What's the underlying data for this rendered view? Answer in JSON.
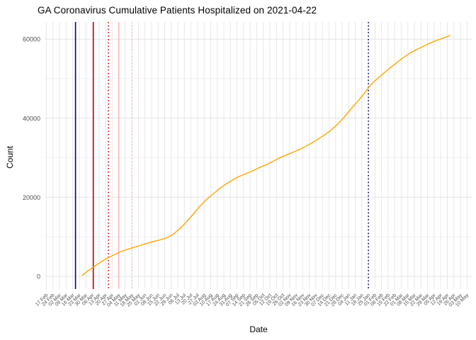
{
  "figure": {
    "title": "GA Coronavirus Cumulative Patients Hospitalized on 2021-04-22",
    "xlabel": "Date",
    "ylabel": "Count"
  },
  "chart_data": {
    "type": "line",
    "title": "GA Coronavirus Cumulative Patients Hospitalized on 2021-04-22",
    "xlabel": "Date",
    "ylabel": "Count",
    "grid": true,
    "legend": "none",
    "x_axis": {
      "start_date": "2020-02-17",
      "end_date": "2021-05-10",
      "tick_interval": "1 week",
      "tick_labels": [
        "17 Feb",
        "24 Feb",
        "02 Mar",
        "09 Mar",
        "16 Mar",
        "23 Mar",
        "30 Mar",
        "06 Apr",
        "13 Apr",
        "20 Apr",
        "27 Apr",
        "04 May",
        "11 May",
        "18 May",
        "25 May",
        "01 Jun",
        "08 Jun",
        "15 Jun",
        "22 Jun",
        "29 Jun",
        "06 Jul",
        "13 Jul",
        "20 Jul",
        "27 Jul",
        "03 Aug",
        "10 Aug",
        "17 Aug",
        "24 Aug",
        "31 Aug",
        "07 Sep",
        "14 Sep",
        "21 Sep",
        "28 Sep",
        "05 Oct",
        "12 Oct",
        "19 Oct",
        "26 Oct",
        "02 Nov",
        "09 Nov",
        "16 Nov",
        "23 Nov",
        "30 Nov",
        "07 Dec",
        "14 Dec",
        "21 Dec",
        "28 Dec",
        "04 Jan",
        "11 Jan",
        "18 Jan",
        "25 Jan",
        "01 Feb",
        "08 Feb",
        "15 Feb",
        "22 Feb",
        "01 Mar",
        "08 Mar",
        "15 Mar",
        "22 Mar",
        "29 Mar",
        "05 Apr",
        "12 Apr",
        "19 Apr",
        "26 Apr",
        "03 May",
        "10 May"
      ]
    },
    "y_axis": {
      "major_ticks": [
        0,
        20000,
        40000,
        60000
      ],
      "minor_ticks": [
        10000,
        30000,
        50000
      ],
      "ylim": [
        -3200,
        64300
      ]
    },
    "series": [
      {
        "name": "cumulative-hospitalized",
        "color": "#FFA500",
        "points": [
          [
            "2020-03-26",
            200
          ],
          [
            "2020-04-01",
            1300
          ],
          [
            "2020-04-08",
            2500
          ],
          [
            "2020-04-15",
            3600
          ],
          [
            "2020-04-22",
            4600
          ],
          [
            "2020-04-29",
            5400
          ],
          [
            "2020-05-06",
            6200
          ],
          [
            "2020-05-13",
            6800
          ],
          [
            "2020-05-20",
            7300
          ],
          [
            "2020-05-27",
            7800
          ],
          [
            "2020-06-03",
            8300
          ],
          [
            "2020-06-10",
            8800
          ],
          [
            "2020-06-17",
            9200
          ],
          [
            "2020-06-24",
            9700
          ],
          [
            "2020-07-01",
            10600
          ],
          [
            "2020-07-08",
            12000
          ],
          [
            "2020-07-15",
            13700
          ],
          [
            "2020-07-22",
            15600
          ],
          [
            "2020-07-29",
            17600
          ],
          [
            "2020-08-05",
            19300
          ],
          [
            "2020-08-12",
            20700
          ],
          [
            "2020-08-19",
            22100
          ],
          [
            "2020-08-26",
            23300
          ],
          [
            "2020-09-02",
            24300
          ],
          [
            "2020-09-09",
            25200
          ],
          [
            "2020-09-16",
            25900
          ],
          [
            "2020-09-23",
            26600
          ],
          [
            "2020-09-30",
            27400
          ],
          [
            "2020-10-07",
            28100
          ],
          [
            "2020-10-14",
            28900
          ],
          [
            "2020-10-21",
            29800
          ],
          [
            "2020-10-28",
            30500
          ],
          [
            "2020-11-04",
            31200
          ],
          [
            "2020-11-11",
            31900
          ],
          [
            "2020-11-18",
            32700
          ],
          [
            "2020-11-25",
            33600
          ],
          [
            "2020-12-02",
            34700
          ],
          [
            "2020-12-09",
            35700
          ],
          [
            "2020-12-16",
            36900
          ],
          [
            "2020-12-23",
            38400
          ],
          [
            "2020-12-30",
            40200
          ],
          [
            "2021-01-06",
            42200
          ],
          [
            "2021-01-13",
            44100
          ],
          [
            "2021-01-20",
            46100
          ],
          [
            "2021-01-27",
            48300
          ],
          [
            "2021-02-03",
            49900
          ],
          [
            "2021-02-10",
            51300
          ],
          [
            "2021-02-17",
            52700
          ],
          [
            "2021-02-24",
            54000
          ],
          [
            "2021-03-03",
            55300
          ],
          [
            "2021-03-10",
            56400
          ],
          [
            "2021-03-17",
            57300
          ],
          [
            "2021-03-24",
            58100
          ],
          [
            "2021-03-31",
            58900
          ],
          [
            "2021-04-07",
            59600
          ],
          [
            "2021-04-14",
            60200
          ],
          [
            "2021-04-21",
            60800
          ],
          [
            "2021-04-22",
            61000
          ]
        ]
      }
    ],
    "vlines": [
      {
        "date": "2020-03-19",
        "color": "#000080",
        "style": "solid"
      },
      {
        "date": "2020-04-07",
        "color": "#DD0000",
        "style": "solid"
      },
      {
        "date": "2020-04-23",
        "color": "#DD0000",
        "style": "dotted"
      },
      {
        "date": "2020-05-04",
        "color": "#FFB6C1",
        "style": "solid"
      },
      {
        "date": "2020-05-18",
        "color": "#FFB6C1",
        "style": "dotted"
      },
      {
        "date": "2021-01-25",
        "color": "#000080",
        "style": "dotted"
      }
    ],
    "colors": {
      "background": "#FFFFFF",
      "grid_major": "#E4E4E4",
      "grid_minor": "#F1F1F1",
      "tick_label": "#4D4D4D",
      "text": "#000000"
    }
  }
}
